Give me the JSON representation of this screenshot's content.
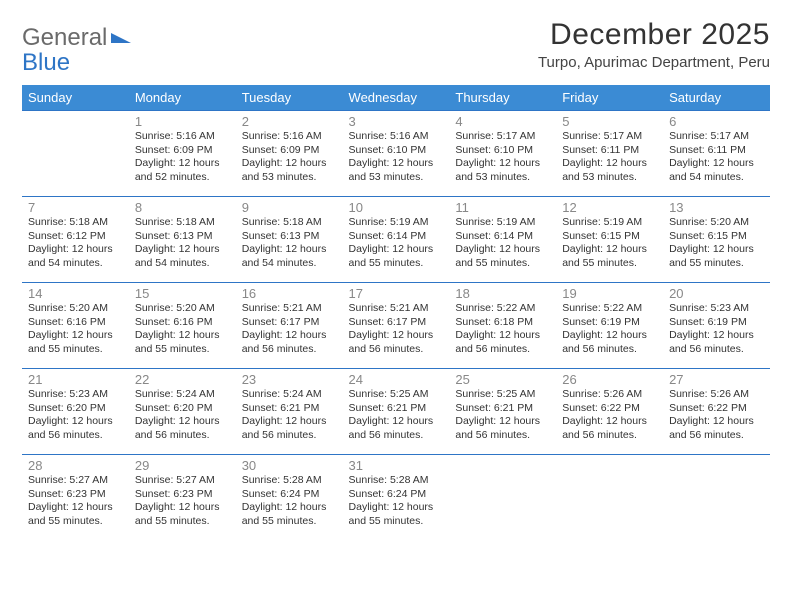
{
  "logo": {
    "part1": "General",
    "part2": "Blue"
  },
  "title": "December 2025",
  "location": "Turpo, Apurimac Department, Peru",
  "colors": {
    "header_bg": "#3b8bd4",
    "header_text": "#ffffff",
    "cell_border": "#2e75c6",
    "daynum": "#888888",
    "body_text": "#333333",
    "logo_gray": "#6a6a6a",
    "logo_blue": "#2e75c6",
    "background": "#ffffff"
  },
  "typography": {
    "title_fontsize": 30,
    "location_fontsize": 15,
    "weekday_fontsize": 13,
    "daynum_fontsize": 13,
    "body_fontsize": 10.5
  },
  "weekdays": [
    "Sunday",
    "Monday",
    "Tuesday",
    "Wednesday",
    "Thursday",
    "Friday",
    "Saturday"
  ],
  "weeks": [
    [
      null,
      {
        "n": "1",
        "sr": "5:16 AM",
        "ss": "6:09 PM",
        "dl": "12 hours and 52 minutes."
      },
      {
        "n": "2",
        "sr": "5:16 AM",
        "ss": "6:09 PM",
        "dl": "12 hours and 53 minutes."
      },
      {
        "n": "3",
        "sr": "5:16 AM",
        "ss": "6:10 PM",
        "dl": "12 hours and 53 minutes."
      },
      {
        "n": "4",
        "sr": "5:17 AM",
        "ss": "6:10 PM",
        "dl": "12 hours and 53 minutes."
      },
      {
        "n": "5",
        "sr": "5:17 AM",
        "ss": "6:11 PM",
        "dl": "12 hours and 53 minutes."
      },
      {
        "n": "6",
        "sr": "5:17 AM",
        "ss": "6:11 PM",
        "dl": "12 hours and 54 minutes."
      }
    ],
    [
      {
        "n": "7",
        "sr": "5:18 AM",
        "ss": "6:12 PM",
        "dl": "12 hours and 54 minutes."
      },
      {
        "n": "8",
        "sr": "5:18 AM",
        "ss": "6:13 PM",
        "dl": "12 hours and 54 minutes."
      },
      {
        "n": "9",
        "sr": "5:18 AM",
        "ss": "6:13 PM",
        "dl": "12 hours and 54 minutes."
      },
      {
        "n": "10",
        "sr": "5:19 AM",
        "ss": "6:14 PM",
        "dl": "12 hours and 55 minutes."
      },
      {
        "n": "11",
        "sr": "5:19 AM",
        "ss": "6:14 PM",
        "dl": "12 hours and 55 minutes."
      },
      {
        "n": "12",
        "sr": "5:19 AM",
        "ss": "6:15 PM",
        "dl": "12 hours and 55 minutes."
      },
      {
        "n": "13",
        "sr": "5:20 AM",
        "ss": "6:15 PM",
        "dl": "12 hours and 55 minutes."
      }
    ],
    [
      {
        "n": "14",
        "sr": "5:20 AM",
        "ss": "6:16 PM",
        "dl": "12 hours and 55 minutes."
      },
      {
        "n": "15",
        "sr": "5:20 AM",
        "ss": "6:16 PM",
        "dl": "12 hours and 55 minutes."
      },
      {
        "n": "16",
        "sr": "5:21 AM",
        "ss": "6:17 PM",
        "dl": "12 hours and 56 minutes."
      },
      {
        "n": "17",
        "sr": "5:21 AM",
        "ss": "6:17 PM",
        "dl": "12 hours and 56 minutes."
      },
      {
        "n": "18",
        "sr": "5:22 AM",
        "ss": "6:18 PM",
        "dl": "12 hours and 56 minutes."
      },
      {
        "n": "19",
        "sr": "5:22 AM",
        "ss": "6:19 PM",
        "dl": "12 hours and 56 minutes."
      },
      {
        "n": "20",
        "sr": "5:23 AM",
        "ss": "6:19 PM",
        "dl": "12 hours and 56 minutes."
      }
    ],
    [
      {
        "n": "21",
        "sr": "5:23 AM",
        "ss": "6:20 PM",
        "dl": "12 hours and 56 minutes."
      },
      {
        "n": "22",
        "sr": "5:24 AM",
        "ss": "6:20 PM",
        "dl": "12 hours and 56 minutes."
      },
      {
        "n": "23",
        "sr": "5:24 AM",
        "ss": "6:21 PM",
        "dl": "12 hours and 56 minutes."
      },
      {
        "n": "24",
        "sr": "5:25 AM",
        "ss": "6:21 PM",
        "dl": "12 hours and 56 minutes."
      },
      {
        "n": "25",
        "sr": "5:25 AM",
        "ss": "6:21 PM",
        "dl": "12 hours and 56 minutes."
      },
      {
        "n": "26",
        "sr": "5:26 AM",
        "ss": "6:22 PM",
        "dl": "12 hours and 56 minutes."
      },
      {
        "n": "27",
        "sr": "5:26 AM",
        "ss": "6:22 PM",
        "dl": "12 hours and 56 minutes."
      }
    ],
    [
      {
        "n": "28",
        "sr": "5:27 AM",
        "ss": "6:23 PM",
        "dl": "12 hours and 55 minutes."
      },
      {
        "n": "29",
        "sr": "5:27 AM",
        "ss": "6:23 PM",
        "dl": "12 hours and 55 minutes."
      },
      {
        "n": "30",
        "sr": "5:28 AM",
        "ss": "6:24 PM",
        "dl": "12 hours and 55 minutes."
      },
      {
        "n": "31",
        "sr": "5:28 AM",
        "ss": "6:24 PM",
        "dl": "12 hours and 55 minutes."
      },
      null,
      null,
      null
    ]
  ],
  "labels": {
    "sunrise": "Sunrise:",
    "sunset": "Sunset:",
    "daylight": "Daylight:"
  }
}
